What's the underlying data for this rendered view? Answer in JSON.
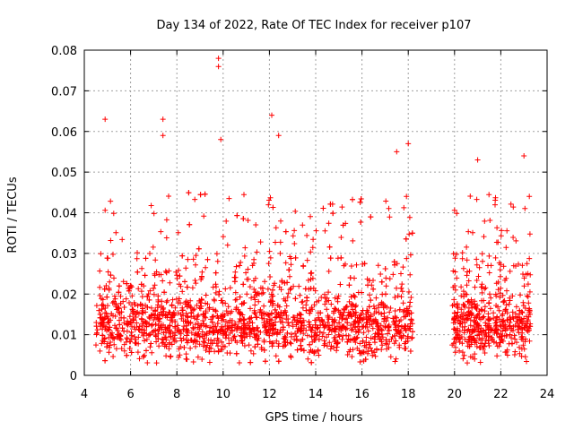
{
  "chart_data": {
    "type": "scatter",
    "title": "Day 134 of 2022, Rate Of TEC Index for receiver p107",
    "xlabel": "GPS time / hours",
    "ylabel": "ROTI / TECUs",
    "xlim": [
      4,
      24
    ],
    "ylim": [
      0,
      0.08
    ],
    "xticks": [
      "4",
      "6",
      "8",
      "10",
      "12",
      "14",
      "16",
      "18",
      "20",
      "22",
      "24"
    ],
    "yticks": [
      "0",
      "0.01",
      "0.02",
      "0.03",
      "0.04",
      "0.05",
      "0.06",
      "0.07",
      "0.08"
    ],
    "grid": true,
    "legend": "none",
    "marker": "+",
    "color": "#ff0000",
    "series": [
      {
        "x_range_hours": [
          [
            4.5,
            18.2
          ],
          [
            19.9,
            23.3
          ]
        ],
        "baseline_roti": 0.011,
        "notable_points": [
          {
            "x": 4.9,
            "y": 0.063
          },
          {
            "x": 7.4,
            "y": 0.063
          },
          {
            "x": 7.4,
            "y": 0.059
          },
          {
            "x": 9.8,
            "y": 0.078
          },
          {
            "x": 9.8,
            "y": 0.076
          },
          {
            "x": 9.9,
            "y": 0.058
          },
          {
            "x": 12.1,
            "y": 0.064
          },
          {
            "x": 12.4,
            "y": 0.059
          },
          {
            "x": 17.5,
            "y": 0.055
          },
          {
            "x": 18.0,
            "y": 0.057
          },
          {
            "x": 21.0,
            "y": 0.053
          },
          {
            "x": 23.0,
            "y": 0.054
          }
        ]
      }
    ]
  }
}
